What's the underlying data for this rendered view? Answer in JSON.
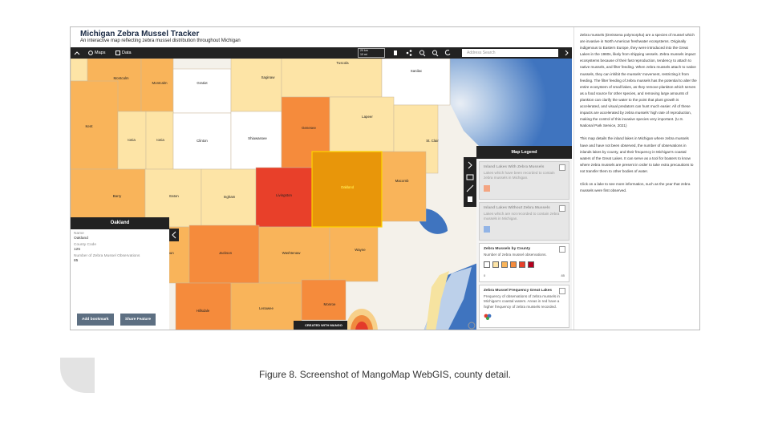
{
  "header": {
    "title": "Michigan Zebra Mussel Tracker",
    "subtitle": "An interactive map reflecting zebra mussel distribution throughout Michigan"
  },
  "toolbar": {
    "maps": "Maps",
    "data": "Data",
    "scale_km": "20 km",
    "scale_mi": "10 mi",
    "search_placeholder": "Address Search"
  },
  "counties": [
    "Tuscola",
    "Sanilac",
    "Montcalm",
    "Montcalm",
    "Gratiot",
    "Saginaw",
    "Kent",
    "Ionia",
    "Ionia",
    "Clinton",
    "Shiawassee",
    "Genesee",
    "Lapeer",
    "St. Clair",
    "Barry",
    "Eaton",
    "Ingham",
    "Livingston",
    "Oakland",
    "Macomb",
    "oun",
    "Jackson",
    "Washtenaw",
    "Wayne",
    "Hillsdale",
    "Lenawee",
    "Monroe"
  ],
  "popup": {
    "title": "Oakland",
    "fields": [
      {
        "label": "Name",
        "value": "Oakland"
      },
      {
        "label": "County Code",
        "value": "125"
      },
      {
        "label": "Number of Zebra Mussel Observations",
        "value": "85"
      }
    ],
    "buttons": [
      "Add bookmark",
      "Share Feature"
    ]
  },
  "badge": "CREATED WITH MANGO",
  "legend": {
    "title": "Map Legend",
    "items": [
      {
        "title": "Inland Lakes With Zebra Mussels",
        "description": "Lakes which have been recorded to contain zebra mussels in Michigan."
      },
      {
        "title": "Inland Lakes Without Zebra Mussels",
        "description": "Lakes which are not recorded to contain zebra mussels in Michigan."
      },
      {
        "title": "Zebra Mussels by County",
        "description": "Number of zebra mussel observations.",
        "min_label": "0",
        "max_label": "85"
      },
      {
        "title": "Zebra Mussel Frequency Great Lakes",
        "description": "Frequency of observations of zebra mussels in Michigan's coastal waters. Areas in red have a higher frequency of zebra mussels recorded."
      }
    ]
  },
  "sidebar": [
    "Zebra mussels (Dreissena polymorpha) are a species of mussel which are invasive in North American freshwater ecosystems. Originally indigenous to Eastern Europe, they were introduced into the Great Lakes in the 1980s, likely from shipping vessels. Zebra mussels impact ecosystems because of their fast reproduction, tendency to attach to native mussels, and filter feeding. When zebra mussels attach to native mussels, they can inhibit the mussels' movement, restricting it from feeding. The filter feeding of zebra mussels has the potential to alter the entire ecosystem of small lakes, as they remove plankton which serves as a food source for other species, and removing large amounts of plankton can clarify the water to the point that plant growth is accelerated, and visual predators can hunt much easier. All of these impacts are accelerated by zebra mussels' high rate of reproduction, making the control of this invasive species very important. (U.S. National Park Service, 2021)",
    "This map details the inland lakes in Michigan where zebra mussels have and have not been observed, the number of observations in inlands lakes by county, and their frequency in Michigan's coastal waters of the Great Lakes. It can serve as a tool for boaters to know where zebra mussels are present in order to take extra precautions to not transfer them to other bodies of water.",
    "Click on a lake to see more information, such as the year that zebra mussels were first observed."
  ],
  "caption": "Figure 8. Screenshot of MangoMap WebGIS, county detail."
}
